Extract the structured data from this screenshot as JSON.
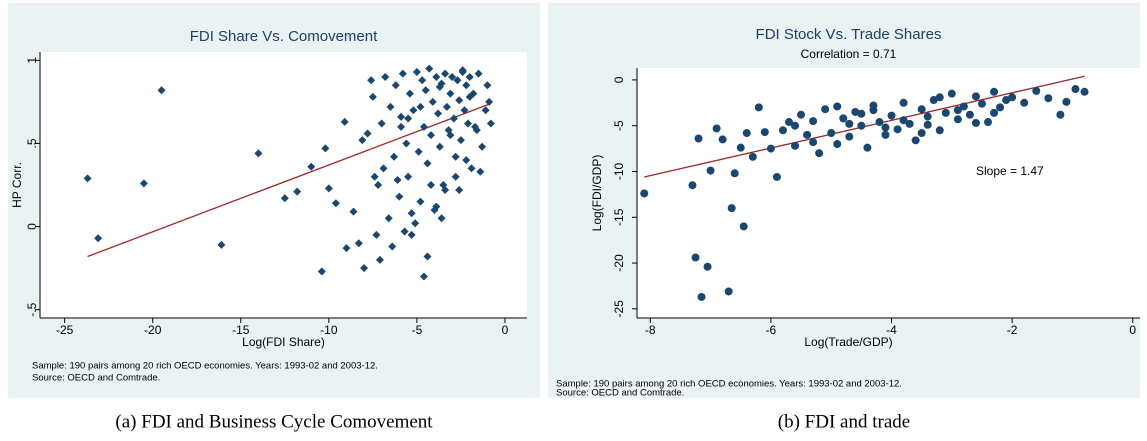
{
  "chart_data": [
    {
      "type": "scatter",
      "title": "FDI Share Vs. Comovement",
      "xlabel": "Log(FDI Share)",
      "ylabel": "HP Corr.",
      "xlim": [
        -26.4,
        1.25
      ],
      "ylim": [
        -0.55,
        1.05
      ],
      "xticks": [
        -25,
        -20,
        -15,
        -10,
        -5,
        0
      ],
      "yticks": [
        {
          "value": -0.5,
          "label": "-.5"
        },
        0,
        {
          "value": 0.5,
          "label": ".5"
        },
        1
      ],
      "marker": "diamond",
      "color": "#1a476f",
      "x": [
        -23.7,
        -23.1,
        -20.5,
        -19.5,
        -16.1,
        -14,
        -12.5,
        -11.8,
        -11,
        -10.4,
        -10.2,
        -10,
        -9.6,
        -9.1,
        -9,
        -8.6,
        -8.3,
        -8.1,
        -8,
        -7.8,
        -7.6,
        -7.4,
        -7.5,
        -7.2,
        -7.0,
        -6.8,
        -6.6,
        -6.5,
        -6.3,
        -6.2,
        -6.0,
        -5.9,
        -5.8,
        -5.6,
        -5.5,
        -5.4,
        -5.3,
        -5.2,
        -5.0,
        -4.9,
        -4.8,
        -4.7,
        -4.6,
        -4.5,
        -4.4,
        -4.3,
        -4.2,
        -4.1,
        -4.0,
        -3.9,
        -3.8,
        -3.7,
        -3.6,
        -3.5,
        -3.4,
        -3.3,
        -3.2,
        -3.1,
        -3.0,
        -2.9,
        -2.8,
        -2.7,
        -2.6,
        -2.5,
        -2.4,
        -2.3,
        -2.2,
        -2.1,
        -2.0,
        -1.9,
        -1.8,
        -1.7,
        -1.5,
        -1.3,
        -1.1,
        -0.9,
        -7.1,
        -6.4,
        -5.7,
        -5.1,
        -4.6,
        -3.9,
        -3.4,
        -2.8,
        -2.2,
        -1.6,
        -6.9,
        -6.1,
        -5.3,
        -4.4,
        -3.6,
        -2.6,
        -1.4,
        -7.3,
        -5.9,
        -4.8,
        -3.7,
        -2.4,
        -5.5,
        -4.2,
        -3.1,
        -2.0,
        -1.0,
        -0.8
      ],
      "values": [
        0.29,
        -0.07,
        0.26,
        0.82,
        -0.11,
        0.44,
        0.17,
        0.21,
        0.36,
        -0.27,
        0.47,
        0.23,
        0.14,
        0.63,
        -0.13,
        0.09,
        -0.1,
        0.52,
        -0.25,
        0.56,
        0.88,
        0.3,
        0.78,
        0.25,
        0.62,
        0.9,
        0.05,
        0.72,
        0.42,
        0.85,
        0.18,
        0.66,
        0.92,
        0.5,
        0.3,
        0.8,
        -0.05,
        0.7,
        0.93,
        0.45,
        0.15,
        0.88,
        0.6,
        0.82,
        0.38,
        0.95,
        0.55,
        0.75,
        0.1,
        0.9,
        0.68,
        0.48,
        0.86,
        0.25,
        0.92,
        0.72,
        0.58,
        0.8,
        0.9,
        0.65,
        0.42,
        0.88,
        0.76,
        0.52,
        0.93,
        0.7,
        0.85,
        0.62,
        0.9,
        0.35,
        0.8,
        0.6,
        0.92,
        0.48,
        0.7,
        0.75,
        -0.2,
        -0.12,
        -0.03,
        0.02,
        -0.3,
        0.12,
        0.22,
        0.3,
        0.4,
        0.58,
        0.35,
        0.28,
        0.08,
        -0.18,
        0.05,
        0.22,
        0.33,
        -0.05,
        0.6,
        0.72,
        0.84,
        0.94,
        0.65,
        0.25,
        0.55,
        0.78,
        0.85,
        0.62
      ],
      "fit": {
        "x": [
          -23.7,
          -0.8
        ],
        "values": [
          -0.18,
          0.74
        ],
        "color": "#a02828"
      },
      "notes": [
        "Sample: 190 pairs among 20 rich OECD economies. Years: 1993-02 and 2003-12.",
        "Source: OECD and Comtrade."
      ],
      "caption": "(a) FDI and Business Cycle Comovement"
    },
    {
      "type": "scatter",
      "title": "FDI Stock Vs. Trade Shares",
      "subtitle": "Correlation = 0.71",
      "xlabel": "Log(Trade/GDP)",
      "ylabel": "Log(FDI/GDP)",
      "xlim": [
        -8.22,
        0.12
      ],
      "ylim": [
        -26,
        1.3
      ],
      "xticks": [
        -8,
        -6,
        -4,
        -2,
        0
      ],
      "yticks": [
        -25,
        -20,
        -15,
        -10,
        -5,
        0
      ],
      "marker": "circle",
      "color": "#1a476f",
      "x": [
        -8.1,
        -7.3,
        -7.25,
        -7.15,
        -7.05,
        -6.7,
        -6.65,
        -6.45,
        -7.2,
        -7.0,
        -6.9,
        -6.8,
        -6.6,
        -6.5,
        -6.4,
        -6.3,
        -6.2,
        -6.1,
        -5.9,
        -6.0,
        -5.8,
        -5.6,
        -5.5,
        -5.4,
        -5.3,
        -5.2,
        -5.1,
        -5.0,
        -4.9,
        -4.8,
        -4.7,
        -4.6,
        -4.5,
        -4.4,
        -4.3,
        -4.2,
        -4.1,
        -4.0,
        -3.9,
        -3.8,
        -3.7,
        -3.6,
        -3.5,
        -3.4,
        -3.3,
        -3.2,
        -3.1,
        -3.0,
        -2.9,
        -2.8,
        -2.7,
        -2.6,
        -2.5,
        -2.4,
        -2.3,
        -2.2,
        -2.1,
        -2.0,
        -1.8,
        -1.6,
        -1.4,
        -1.2,
        -1.1,
        -0.95,
        -0.8,
        -5.7,
        -5.3,
        -4.9,
        -4.5,
        -4.1,
        -3.8,
        -3.5,
        -3.2,
        -2.9,
        -2.6,
        -5.6,
        -4.7,
        -4.3,
        -3.4,
        -2.3
      ],
      "values": [
        -12.4,
        -11.5,
        -19.4,
        -23.7,
        -20.4,
        -23.1,
        -14,
        -16,
        -6.4,
        -9.9,
        -5.3,
        -6.5,
        -10.2,
        -7.4,
        -5.8,
        -8.4,
        -3,
        -5.7,
        -10.6,
        -7.5,
        -5.5,
        -7.2,
        -3.8,
        -6.0,
        -4.5,
        -8.0,
        -3.2,
        -5.8,
        -7.0,
        -4.2,
        -6.2,
        -3.5,
        -5.0,
        -7.4,
        -2.8,
        -4.6,
        -6.0,
        -3.9,
        -5.4,
        -2.5,
        -4.8,
        -6.6,
        -3.2,
        -4.0,
        -2.2,
        -5.5,
        -3.6,
        -1.5,
        -4.3,
        -2.9,
        -3.8,
        -1.8,
        -2.6,
        -4.6,
        -1.3,
        -3.0,
        -2.2,
        -1.9,
        -2.5,
        -1.2,
        -2.0,
        -3.8,
        -2.4,
        -1.0,
        -1.3,
        -4.6,
        -6.8,
        -2.9,
        -3.7,
        -5.2,
        -4.4,
        -5.8,
        -1.9,
        -3.3,
        -4.7,
        -5.0,
        -4.8,
        -3.3,
        -4.9,
        -3.6
      ],
      "fit": {
        "x": [
          -8.1,
          -0.8
        ],
        "values": [
          -10.6,
          0.4
        ],
        "color": "#a02828"
      },
      "annotations": [
        "Slope = 1.47"
      ],
      "notes": [
        "Sample: 190 pairs among 20 rich OECD economies. Years: 1993-02 and 2003-12.",
        "Source: OECD and Comtrade."
      ],
      "caption": "(b) FDI and trade"
    }
  ]
}
